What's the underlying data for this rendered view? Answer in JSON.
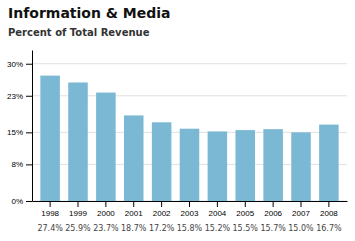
{
  "chart_data": {
    "type": "bar",
    "title": "Information & Media",
    "subtitle": "Percent of Total Revenue",
    "categories": [
      "1998",
      "1999",
      "2000",
      "2001",
      "2002",
      "2003",
      "2004",
      "2005",
      "2006",
      "2007",
      "2008"
    ],
    "values": [
      27.4,
      25.9,
      23.7,
      18.7,
      17.2,
      15.8,
      15.2,
      15.5,
      15.7,
      15.0,
      16.7
    ],
    "value_labels": [
      "27.4%",
      "25.9%",
      "23.7%",
      "18.7%",
      "17.2%",
      "15.8%",
      "15.2%",
      "15.5%",
      "15.7%",
      "15.0%",
      "16.7%"
    ],
    "data_labels": true,
    "color": "#7ab8d4",
    "ylim": [
      0,
      33
    ],
    "yticks": [
      {
        "value": 0,
        "label": "0%"
      },
      {
        "value": 8,
        "label": "8%"
      },
      {
        "value": 15,
        "label": "15%"
      },
      {
        "value": 23,
        "label": "23%"
      },
      {
        "value": 30,
        "label": "30%"
      }
    ],
    "grid": true
  }
}
